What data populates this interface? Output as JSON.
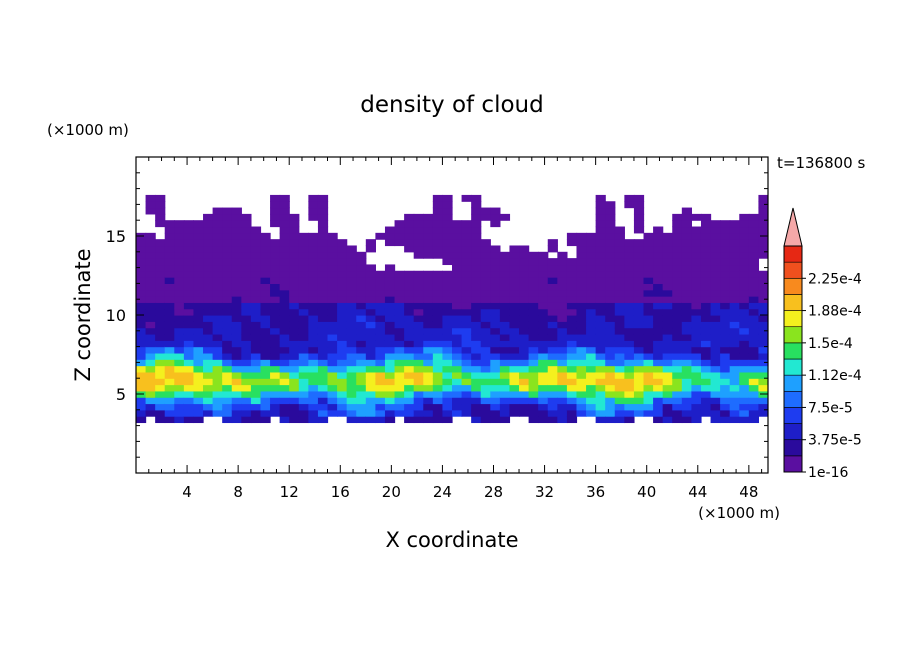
{
  "chart_data": {
    "type": "heatmap",
    "title": "density of cloud",
    "xlabel": "X coordinate",
    "ylabel": "Z coordinate",
    "x_unit": "(×1000 m)",
    "y_unit": "(×1000 m)",
    "time_label": "t=136800 s",
    "xlim": [
      0,
      49.5
    ],
    "ylim": [
      0,
      20
    ],
    "x_ticks": [
      4,
      8,
      12,
      16,
      20,
      24,
      28,
      32,
      36,
      40,
      44,
      48
    ],
    "x_tick_labels": [
      "4",
      "8",
      "12",
      "16",
      "20",
      "24",
      "28",
      "32",
      "36",
      "40",
      "44",
      "48"
    ],
    "y_ticks": [
      5,
      10,
      15
    ],
    "y_tick_labels": [
      "5",
      "10",
      "15"
    ],
    "colorbar": {
      "levels": [
        1e-16,
        1.875e-05,
        3.75e-05,
        5.625e-05,
        7.5e-05,
        9.375e-05,
        0.0001125,
        0.00013125,
        0.00015,
        0.00016875,
        0.0001875,
        0.00020625,
        0.000225,
        0.00024375
      ],
      "labels": [
        "1e-16",
        "3.75e-5",
        "7.5e-5",
        "1.12e-4",
        "1.5e-4",
        "1.88e-4",
        "2.25e-4"
      ],
      "label_values": [
        1e-16,
        3.75e-05,
        7.5e-05,
        0.0001125,
        0.00015,
        0.0001875,
        0.000225
      ],
      "colors": [
        "#5a0fa0",
        "#2a0a9c",
        "#1e1ec8",
        "#1e3cf0",
        "#1e6cff",
        "#1ea0ff",
        "#22e8d2",
        "#28e060",
        "#8ae41e",
        "#f4f01e",
        "#f8c01e",
        "#f88a1e",
        "#f0501e",
        "#e62814"
      ],
      "extend_color": "#f5a8a8"
    },
    "cloud_layers_km": {
      "core_band": [
        3.5,
        8
      ],
      "max_density_altitude": 6,
      "upper_cloud_top": 16.5
    }
  }
}
